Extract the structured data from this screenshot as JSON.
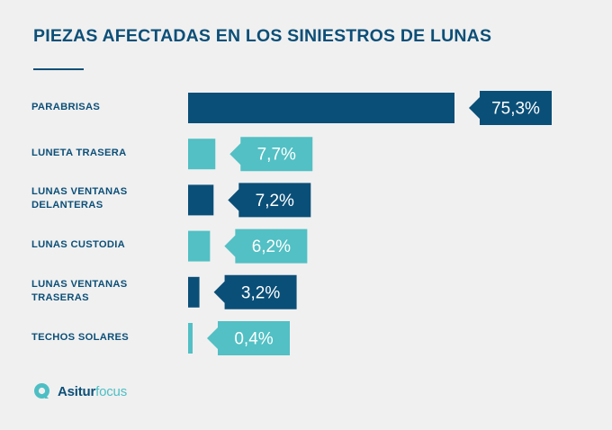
{
  "colors": {
    "dark": "#0a4f78",
    "light": "#52c0c4",
    "title": "#0c4f78"
  },
  "chart_data": {
    "type": "bar",
    "orientation": "horizontal",
    "title": "PIEZAS AFECTADAS EN LOS SINIESTROS DE LUNAS",
    "categories": [
      "PARABRISAS",
      "LUNETA TRASERA",
      "LUNAS  VENTANAS\nDELANTERAS",
      "LUNAS CUSTODIA",
      "LUNAS VENTANAS\nTRASERAS",
      "TECHOS SOLARES"
    ],
    "values": [
      75.3,
      7.7,
      7.2,
      6.2,
      3.2,
      0.4
    ],
    "value_labels": [
      "75,3%",
      "7,7%",
      "7,2%",
      "6,2%",
      "3,2%",
      "0,4%"
    ],
    "bar_colors": [
      "dark",
      "light",
      "dark",
      "light",
      "dark",
      "light"
    ],
    "unit": "%",
    "xlim": [
      0,
      80
    ]
  },
  "brand": {
    "part1": "Asitur",
    "part2": "focus"
  }
}
